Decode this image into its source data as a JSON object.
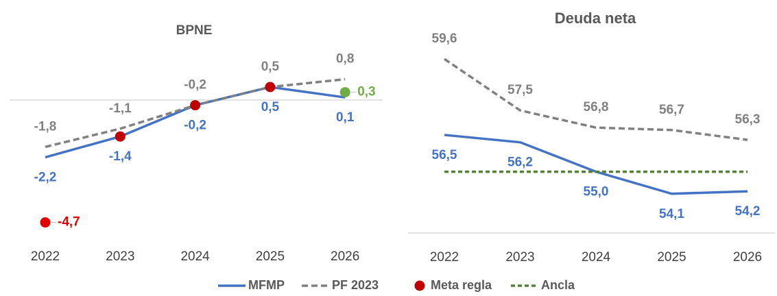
{
  "chart_data": [
    {
      "type": "line",
      "title": "BPNE",
      "categories": [
        "2022",
        "2023",
        "2024",
        "2025",
        "2026"
      ],
      "ylim": [
        -5.5,
        1.5
      ],
      "series": [
        {
          "name": "MFMP",
          "color": "#4472c4",
          "style": "solid",
          "values": [
            -2.2,
            -1.4,
            -0.2,
            0.5,
            0.1
          ],
          "value_labels": [
            "-2,2",
            "-1,4",
            "-0,2",
            "0,5",
            "0,1"
          ]
        },
        {
          "name": "PF 2023",
          "color": "#808080",
          "style": "dashed",
          "values": [
            -1.8,
            -1.1,
            -0.2,
            0.5,
            0.8
          ],
          "value_labels": [
            "-1,8",
            "-1,1",
            "-0,2",
            "0,5",
            "0,8"
          ]
        },
        {
          "name": "Meta regla",
          "color": "#c00000",
          "style": "markers",
          "point_colors": [
            "#e00000",
            "#c00000",
            "#c00000",
            "#c00000",
            "#70ad47"
          ],
          "values": [
            -4.7,
            -1.4,
            -0.2,
            0.5,
            0.3
          ],
          "value_labels": [
            "-4,7",
            null,
            null,
            null,
            "0,3"
          ]
        }
      ]
    },
    {
      "type": "line",
      "title": "Deuda neta",
      "categories": [
        "2022",
        "2023",
        "2024",
        "2025",
        "2026"
      ],
      "ylim": [
        52.5,
        61
      ],
      "series": [
        {
          "name": "MFMP",
          "color": "#4472c4",
          "style": "solid",
          "values": [
            56.5,
            56.2,
            55.0,
            54.1,
            54.2
          ],
          "value_labels": [
            "56,5",
            "56,2",
            "55,0",
            "54,1",
            "54,2"
          ]
        },
        {
          "name": "PF 2023",
          "color": "#808080",
          "style": "dashed",
          "values": [
            59.6,
            57.5,
            56.8,
            56.7,
            56.3
          ],
          "value_labels": [
            "59,6",
            "57,5",
            "56,8",
            "56,7",
            "56,3"
          ]
        },
        {
          "name": "Ancla",
          "color": "#548235",
          "style": "short-dashed",
          "values": [
            55.0,
            55.0,
            55.0,
            55.0,
            55.0
          ]
        }
      ]
    }
  ]
}
